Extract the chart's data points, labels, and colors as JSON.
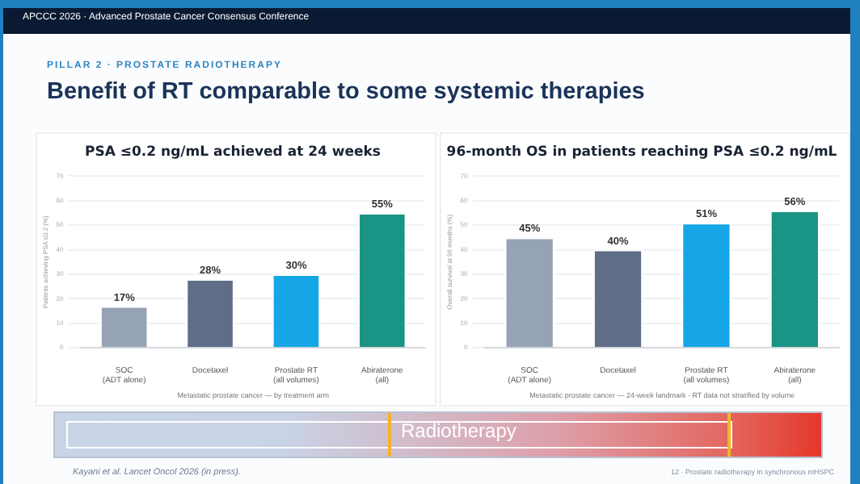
{
  "chart_data": [
    {
      "type": "other",
      "title": "Benefit of RT comparable to some systemic therapies",
      "annotations": [
        "APCCC 2026 · Advanced Prostate Cancer Consensus Conference",
        "PILLAR 2 · PROSTATE RADIOTHERAPY",
        "Radiotherapy",
        "Kayani et al. Lancet Oncol 2026 (in press).",
        "12 · Prostate radiotherapy in synchronous mHSPC"
      ]
    },
    {
      "type": "bar",
      "title": "PSA ≤0.2 ng/mL achieved at 24 weeks",
      "xlabel": "Metastatic prostate cancer — by treatment arm",
      "ylabel": "Patients achieving PSA ≤0.2 (%)",
      "categories": [
        "SOC\n(ADT alone)",
        "Docetaxel",
        "Prostate RT\n(all volumes)",
        "Abiraterone\n(all)"
      ],
      "values": [
        17,
        28,
        30,
        55
      ],
      "value_labels": [
        "17%",
        "28%",
        "30%",
        "55%"
      ],
      "colors": [
        "#95a3b5",
        "#5f6e86",
        "#16a6e6",
        "#1a9484"
      ],
      "ylim": [
        0,
        70
      ],
      "yticks": [
        0,
        10,
        20,
        30,
        40,
        50,
        60,
        70
      ],
      "grid": "y"
    },
    {
      "type": "bar",
      "title": "96-month OS in patients reaching PSA ≤0.2 ng/mL",
      "xlabel": "Metastatic prostate cancer — 24-week landmark · RT data not stratified by volume",
      "ylabel": "Overall survival at 96 months (%)",
      "categories": [
        "SOC\n(ADT alone)",
        "Docetaxel",
        "Prostate RT\n(all volumes)",
        "Abiraterone\n(all)"
      ],
      "values": [
        45,
        40,
        51,
        56
      ],
      "value_labels": [
        "45%",
        "40%",
        "51%",
        "56%"
      ],
      "colors": [
        "#95a3b5",
        "#5f6e86",
        "#16a6e6",
        "#1a9484"
      ],
      "ylim": [
        0,
        70
      ],
      "yticks": [
        0,
        10,
        20,
        30,
        40,
        50,
        60,
        70
      ],
      "grid": "y"
    }
  ]
}
